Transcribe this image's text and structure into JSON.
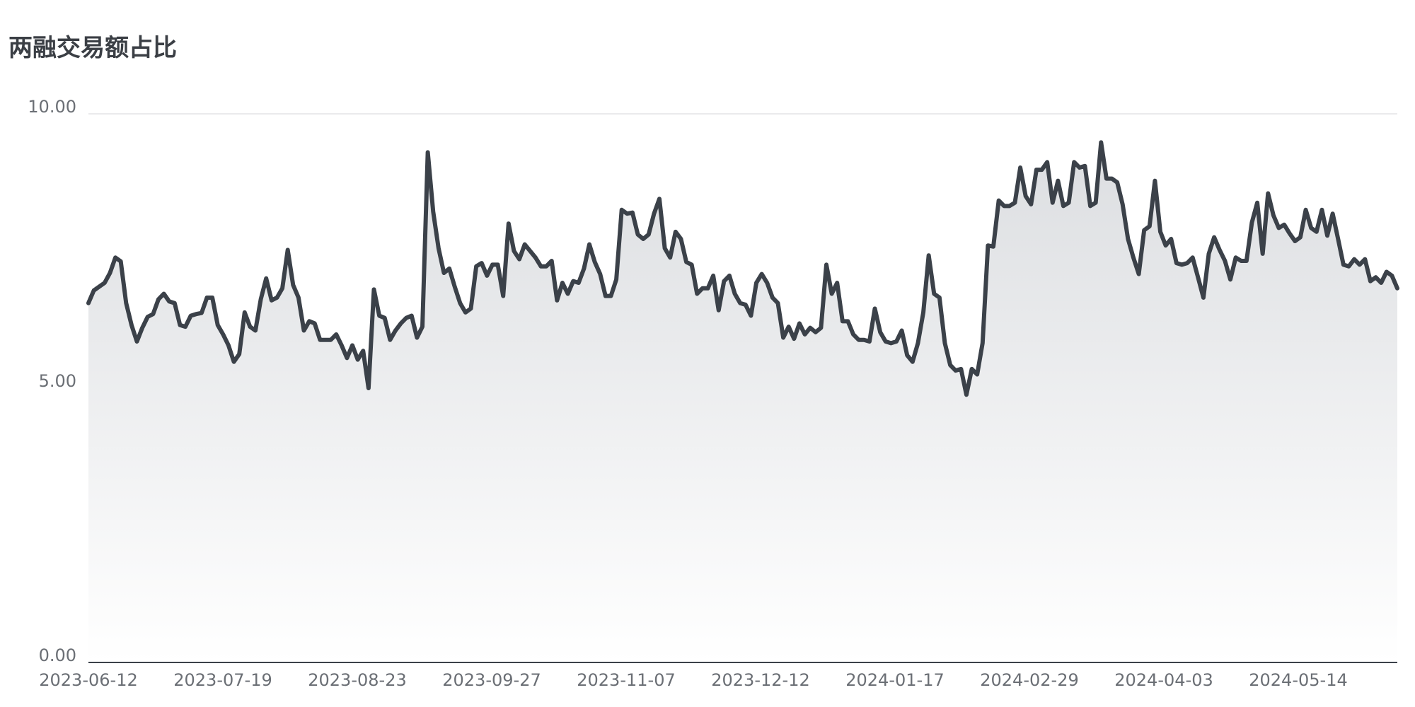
{
  "chart_data": {
    "type": "area",
    "title": "两融交易额占比",
    "xlabel": "",
    "ylabel": "",
    "ylim": [
      0,
      10
    ],
    "y_ticks": [
      "10.00",
      "5.00",
      "0.00"
    ],
    "x_tick_labels": [
      "2023-06-12",
      "2023-07-19",
      "2023-08-23",
      "2023-09-27",
      "2023-11-07",
      "2023-12-12",
      "2024-01-17",
      "2024-02-29",
      "2024-04-03",
      "2024-05-14"
    ],
    "grid": true,
    "line_color": "#3b4149",
    "fill_top_color": "#dcdee1",
    "series": [
      {
        "values": [
          6.55,
          6.78,
          6.85,
          6.92,
          7.1,
          7.38,
          7.31,
          6.55,
          6.15,
          5.85,
          6.1,
          6.3,
          6.35,
          6.62,
          6.72,
          6.58,
          6.55,
          6.15,
          6.12,
          6.32,
          6.35,
          6.37,
          6.65,
          6.65,
          6.15,
          5.98,
          5.78,
          5.48,
          5.62,
          6.38,
          6.12,
          6.05,
          6.62,
          7.0,
          6.6,
          6.65,
          6.82,
          7.52,
          6.88,
          6.65,
          6.05,
          6.22,
          6.18,
          5.88,
          5.88,
          5.88,
          5.98,
          5.78,
          5.55,
          5.78,
          5.52,
          5.68,
          5.0,
          6.8,
          6.32,
          6.28,
          5.88,
          6.05,
          6.18,
          6.28,
          6.32,
          5.92,
          6.12,
          9.3,
          8.22,
          7.55,
          7.1,
          7.18,
          6.85,
          6.55,
          6.38,
          6.45,
          7.22,
          7.28,
          7.05,
          7.25,
          7.25,
          6.68,
          8.0,
          7.5,
          7.35,
          7.62,
          7.5,
          7.38,
          7.22,
          7.22,
          7.32,
          6.6,
          6.92,
          6.72,
          6.95,
          6.92,
          7.18,
          7.62,
          7.3,
          7.08,
          6.68,
          6.68,
          6.98,
          8.25,
          8.18,
          8.2,
          7.8,
          7.72,
          7.8,
          8.18,
          8.45,
          7.55,
          7.38,
          7.85,
          7.72,
          7.3,
          7.25,
          6.72,
          6.82,
          6.82,
          7.05,
          6.42,
          6.95,
          7.05,
          6.72,
          6.55,
          6.52,
          6.32,
          6.92,
          7.08,
          6.92,
          6.65,
          6.55,
          5.92,
          6.12,
          5.9,
          6.18,
          5.98,
          6.1,
          6.02,
          6.1,
          7.25,
          6.72,
          6.92,
          6.22,
          6.22,
          5.98,
          5.88,
          5.88,
          5.85,
          6.45,
          6.02,
          5.85,
          5.82,
          5.85,
          6.05,
          5.6,
          5.48,
          5.82,
          6.38,
          7.42,
          6.72,
          6.65,
          5.82,
          5.42,
          5.32,
          5.35,
          4.88,
          5.35,
          5.25,
          5.82,
          7.6,
          7.58,
          8.42,
          8.32,
          8.32,
          8.38,
          9.02,
          8.5,
          8.35,
          8.98,
          8.98,
          9.12,
          8.38,
          8.78,
          8.32,
          8.38,
          9.12,
          9.02,
          9.05,
          8.32,
          8.38,
          9.48,
          8.82,
          8.82,
          8.75,
          8.35,
          7.72,
          7.38,
          7.08,
          7.88,
          7.95,
          8.78,
          7.85,
          7.6,
          7.72,
          7.28,
          7.25,
          7.28,
          7.38,
          7.02,
          6.65,
          7.45,
          7.75,
          7.52,
          7.32,
          6.98,
          7.38,
          7.32,
          7.32,
          8.02,
          8.38,
          7.45,
          8.55,
          8.15,
          7.92,
          7.98,
          7.82,
          7.68,
          7.75,
          8.25,
          7.92,
          7.85,
          8.25,
          7.78,
          8.18,
          7.72,
          7.25,
          7.22,
          7.35,
          7.25,
          7.35,
          6.95,
          7.02,
          6.92,
          7.12,
          7.05,
          6.82
        ]
      }
    ]
  }
}
